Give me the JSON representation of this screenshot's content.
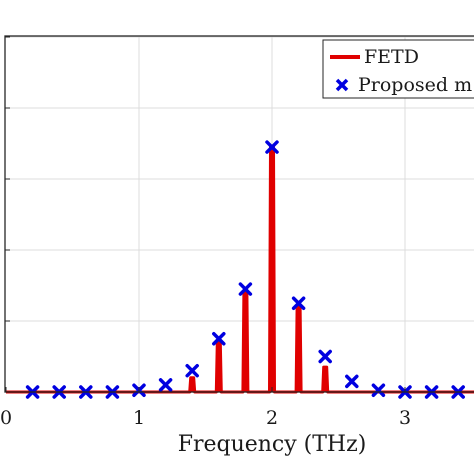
{
  "chart_data": {
    "type": "line",
    "xlabel": "Frequency (THz)",
    "ylabel": "",
    "xlim": [
      0,
      3.5
    ],
    "ylim": [
      0,
      1.1
    ],
    "x_ticks": [
      0,
      1,
      2,
      3
    ],
    "x_tick_labels": [
      "0",
      "1",
      "2",
      "3"
    ],
    "y_ticks": [
      0.2,
      0.4,
      0.6,
      0.8,
      1.0
    ],
    "grid": true,
    "legend_position": "top-right",
    "series": [
      {
        "name": "FETD",
        "style": "line",
        "color": "#e00000",
        "x": [
          0,
          0.2,
          0.4,
          0.6,
          0.8,
          1.0,
          1.2,
          1.4,
          1.6,
          1.8,
          2.0,
          2.2,
          2.4,
          2.6,
          2.8,
          3.0,
          3.2,
          3.4
        ],
        "y": [
          0.0,
          0.0,
          0.0,
          0.0,
          0.0,
          0.0,
          0.0,
          0.04,
          0.14,
          0.28,
          0.69,
          0.24,
          0.07,
          0.0,
          0.0,
          0.0,
          0.0,
          0.0
        ]
      },
      {
        "name": "Proposed m",
        "style": "markers",
        "color": "#0000e0",
        "x": [
          0.2,
          0.4,
          0.6,
          0.8,
          1.0,
          1.2,
          1.4,
          1.6,
          1.8,
          2.0,
          2.2,
          2.4,
          2.6,
          2.8,
          3.0,
          3.2,
          3.4
        ],
        "y": [
          0.0,
          0.0,
          0.0,
          0.0,
          0.005,
          0.02,
          0.06,
          0.15,
          0.29,
          0.69,
          0.25,
          0.1,
          0.03,
          0.005,
          0.0,
          0.0,
          0.0
        ]
      }
    ]
  }
}
